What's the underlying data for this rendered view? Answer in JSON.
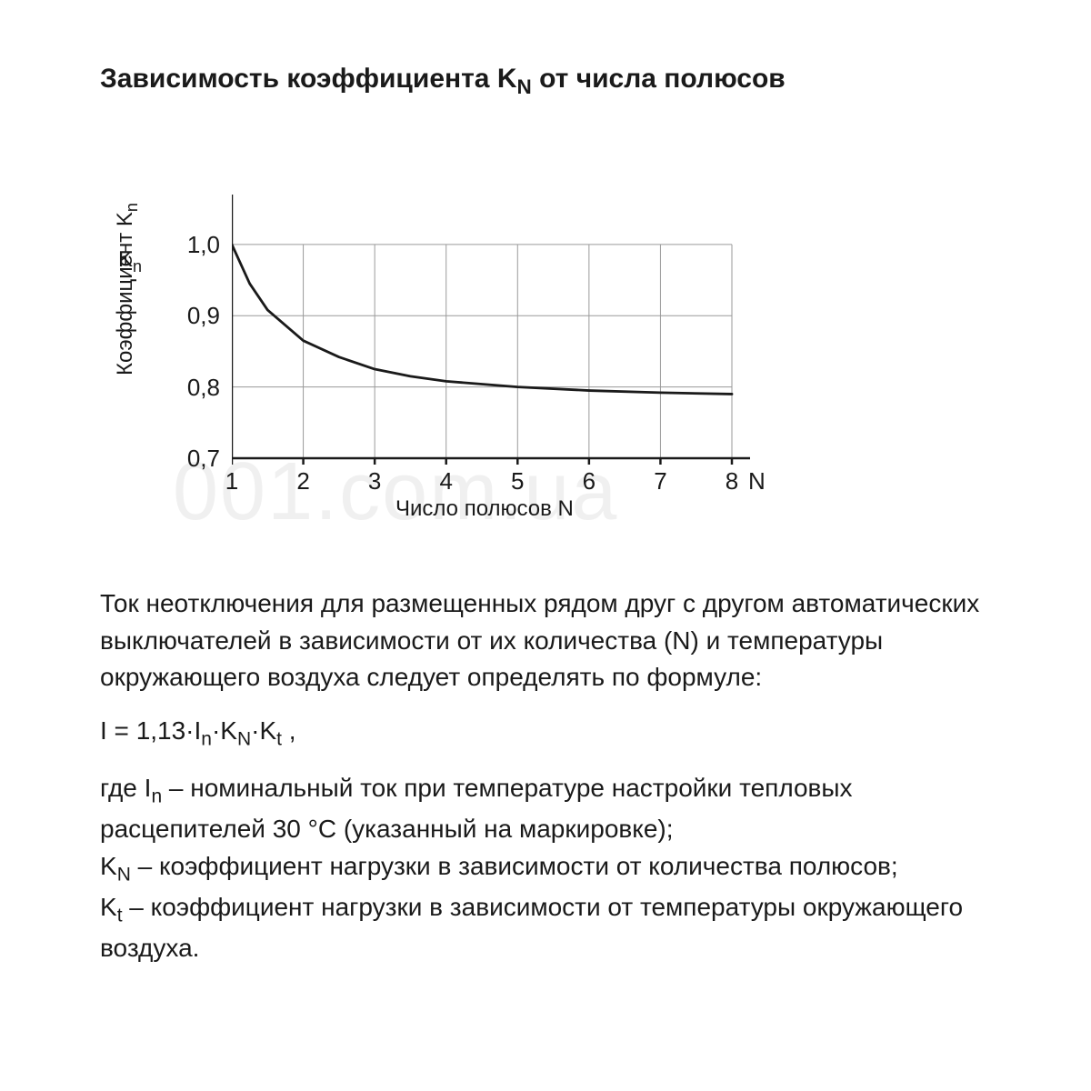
{
  "title_html": "Зависимость коэффициента K<sub class=\"sub\">N</sub> от числа полюсов",
  "watermark": "001.com.ua",
  "chart": {
    "type": "line",
    "y_axis_top_label_html": "K<sub class=\"sub\">n</sub>",
    "y_label_html": "Коэффициент K<sub class=\"sub\">n</sub>",
    "x_label": "Число полюсов N",
    "x_end_label": "N",
    "xlim": [
      1,
      8
    ],
    "ylim": [
      0.7,
      1.07
    ],
    "y_ticks": [
      0.7,
      0.8,
      0.9,
      1.0
    ],
    "y_tick_labels": [
      "0,7",
      "0,8",
      "0,9",
      "1,0"
    ],
    "x_ticks": [
      1,
      2,
      3,
      4,
      5,
      6,
      7,
      8
    ],
    "x_tick_labels": [
      "1",
      "2",
      "3",
      "4",
      "5",
      "6",
      "7",
      "8"
    ],
    "curve": [
      {
        "x": 1.0,
        "y": 1.0
      },
      {
        "x": 1.25,
        "y": 0.945
      },
      {
        "x": 1.5,
        "y": 0.908
      },
      {
        "x": 2.0,
        "y": 0.865
      },
      {
        "x": 2.5,
        "y": 0.842
      },
      {
        "x": 3.0,
        "y": 0.825
      },
      {
        "x": 3.5,
        "y": 0.815
      },
      {
        "x": 4.0,
        "y": 0.808
      },
      {
        "x": 5.0,
        "y": 0.8
      },
      {
        "x": 6.0,
        "y": 0.795
      },
      {
        "x": 7.0,
        "y": 0.792
      },
      {
        "x": 8.0,
        "y": 0.79
      }
    ],
    "axis_color": "#1a1a1a",
    "axis_width": 2.5,
    "grid_color": "#9a9a9a",
    "grid_width": 1,
    "curve_color": "#1a1a1a",
    "curve_width": 2.8,
    "background_color": "#ffffff",
    "tick_fontsize": 26,
    "label_fontsize": 24
  },
  "paragraph": "Ток неотключения для размещенных рядом друг с другом автоматических выключателей в зависимости от их количества (N) и температуры окружающего воздуха следует определять по формуле:",
  "formula_html": "I = 1,13·I<sub class=\"sub\">n</sub>·K<sub class=\"sub\">N</sub>·K<sub class=\"sub\">t</sub> ,",
  "definitions_html": "где I<sub class=\"sub\">n</sub> – номинальный ток при температуре настройки тепловых расцепителей 30 °С (указанный на маркировке);<br>K<sub class=\"sub\">N</sub> – коэффициент нагрузки в зависимости от количества полюсов;<br>K<sub class=\"sub\">t</sub> – коэффициент нагрузки в зависимости от температуры окружающего воздуха."
}
